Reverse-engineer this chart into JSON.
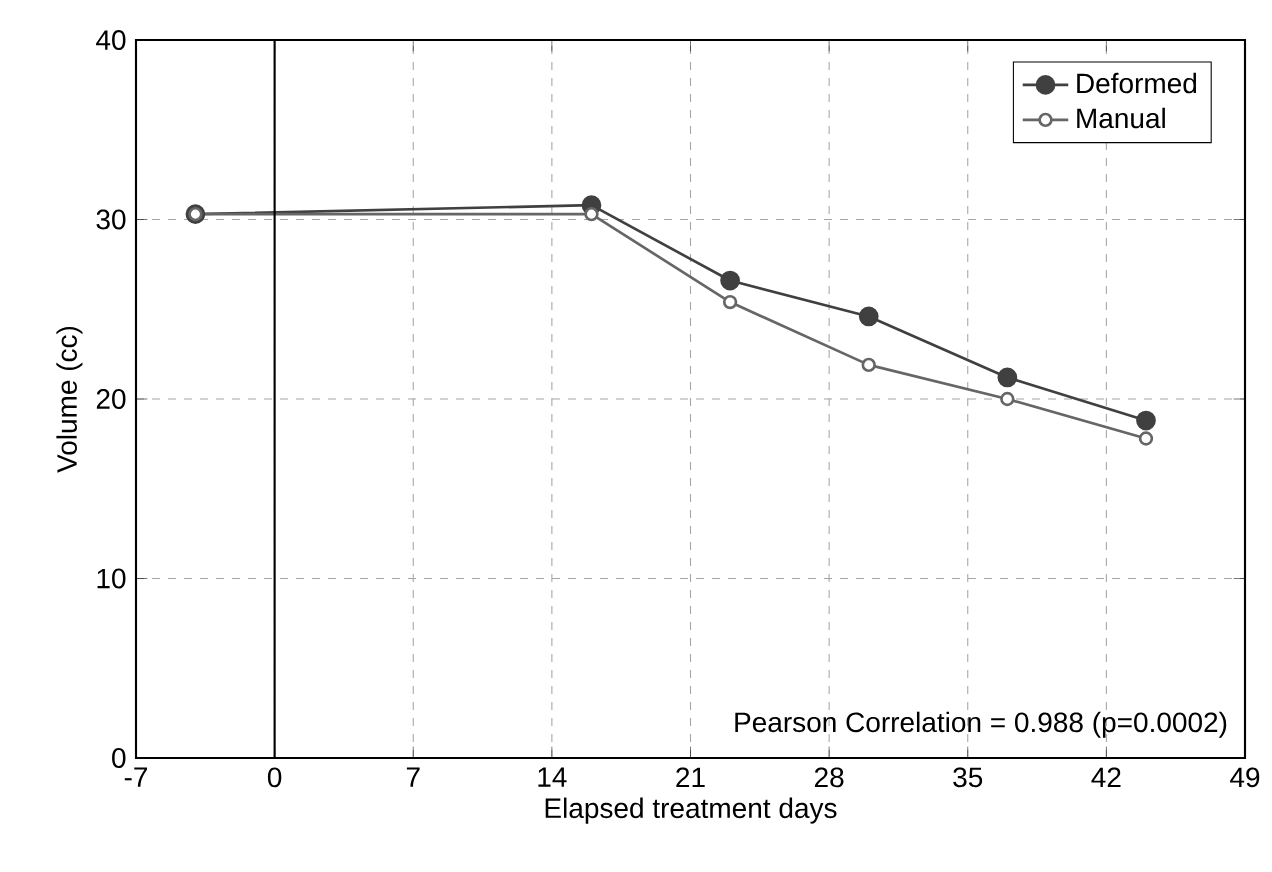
{
  "chart_data": {
    "type": "line",
    "xlabel": "Elapsed treatment days",
    "ylabel": "Volume (cc)",
    "series": [
      {
        "name": "Deformed",
        "color": "#404040",
        "x": [
          -4,
          16,
          23,
          30,
          37,
          44
        ],
        "values": [
          30.3,
          30.8,
          26.6,
          24.6,
          21.2,
          18.8
        ]
      },
      {
        "name": "Manual",
        "color": "#666666",
        "x": [
          -4,
          16,
          23,
          30,
          37,
          44
        ],
        "values": [
          30.3,
          30.3,
          25.4,
          21.9,
          20.0,
          17.8
        ]
      }
    ],
    "xlim": [
      -7,
      49
    ],
    "xticks": [
      -7,
      0,
      7,
      14,
      21,
      28,
      35,
      42,
      49
    ],
    "ylim": [
      0,
      40
    ],
    "yticks": [
      0,
      10,
      20,
      30,
      40
    ],
    "ref_lines": [
      {
        "axis": "x",
        "value": 0,
        "color": "#000000"
      }
    ],
    "annotations": [
      "Pearson Correlation = 0.988 (p=0.0002)"
    ],
    "grid": true,
    "legend": "top right",
    "marker": "circle",
    "line_style": "solid"
  }
}
